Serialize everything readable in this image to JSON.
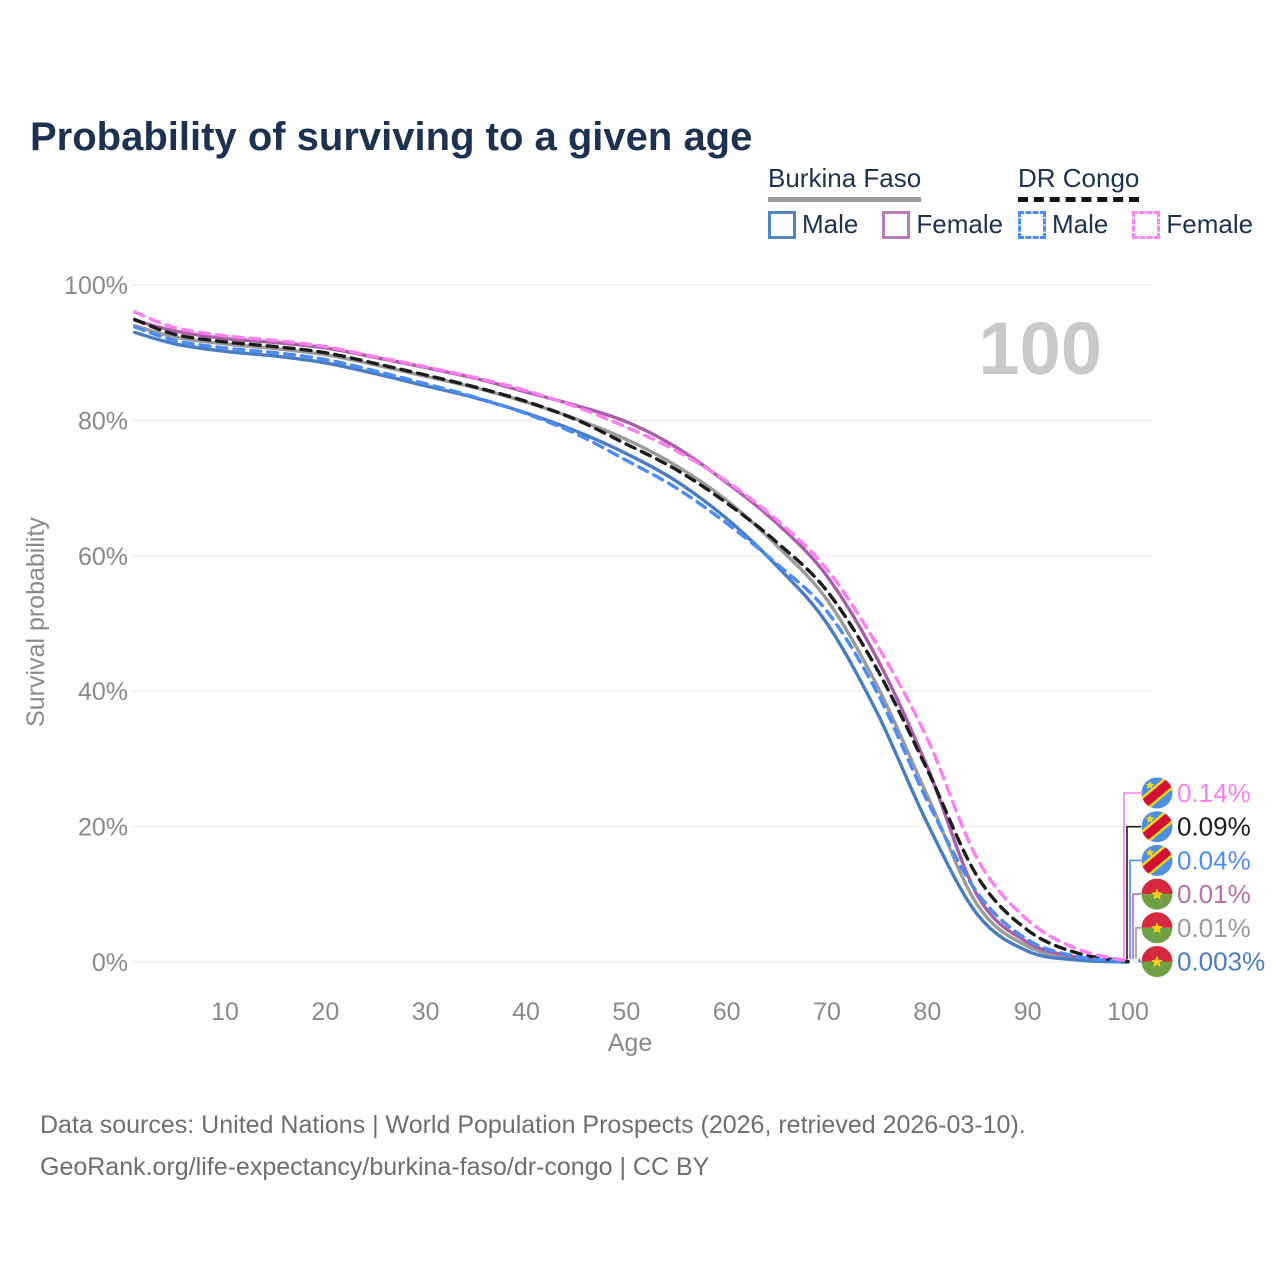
{
  "header": {
    "title": "Probability of surviving to a given age"
  },
  "legend": {
    "groups": [
      {
        "name": "Burkina Faso",
        "line_style": "solid",
        "underline_color": "#999999",
        "items": [
          {
            "label": "Male",
            "color": "#5585c5",
            "box_style": "solid"
          },
          {
            "label": "Female",
            "color": "#bd7cb8",
            "box_style": "solid"
          }
        ]
      },
      {
        "name": "DR Congo",
        "line_style": "dashed",
        "underline_color": "#141414",
        "items": [
          {
            "label": "Male",
            "color": "#4c8cf5",
            "box_style": "dashed"
          },
          {
            "label": "Female",
            "color": "#fd86f3",
            "box_style": "dashed"
          }
        ]
      }
    ]
  },
  "chart_data": {
    "type": "line",
    "title": "Probability of surviving to a given age",
    "xlabel": "Age",
    "ylabel": "Survival probability",
    "xlim": [
      1,
      100
    ],
    "ylim": [
      0,
      100
    ],
    "grid": "horizontal",
    "x_ticks": [
      10,
      20,
      30,
      40,
      50,
      60,
      70,
      80,
      90,
      100
    ],
    "y_ticks": [
      0,
      20,
      40,
      60,
      80,
      100
    ],
    "y_tick_suffix": "%",
    "age_marker": "100",
    "age_marker_color": "#c9c9c9",
    "x": [
      1,
      5,
      10,
      15,
      20,
      25,
      30,
      35,
      40,
      45,
      50,
      55,
      60,
      65,
      70,
      75,
      80,
      85,
      90,
      95,
      100
    ],
    "series": [
      {
        "name": "Burkina Faso Both sexes",
        "country": "burkina-faso",
        "sex": "both",
        "color": "#9b9b9b",
        "dash": false,
        "values": [
          94.0,
          92.3,
          91.3,
          90.6,
          89.7,
          88.2,
          86.5,
          84.8,
          82.7,
          80.2,
          77.2,
          73.3,
          68.2,
          61.5,
          53.5,
          40.8,
          24.6,
          8.4,
          2.3,
          0.5,
          0.01
        ]
      },
      {
        "name": "Burkina Faso Female",
        "country": "burkina-faso",
        "sex": "female",
        "color": "#a95fa8",
        "dash": false,
        "values": [
          94.8,
          93.2,
          92.1,
          91.5,
          90.7,
          89.3,
          87.8,
          86.2,
          84.2,
          82.2,
          79.8,
          76.0,
          70.8,
          64.8,
          57.0,
          44.8,
          28.8,
          9.8,
          2.9,
          0.7,
          0.01
        ]
      },
      {
        "name": "Burkina Faso Male",
        "country": "burkina-faso",
        "sex": "male",
        "color": "#4a7cc3",
        "dash": false,
        "values": [
          93.0,
          91.3,
          90.2,
          89.5,
          88.5,
          86.9,
          85.1,
          83.3,
          81.1,
          78.4,
          75.1,
          71.0,
          65.5,
          58.5,
          50.0,
          36.8,
          20.5,
          7.0,
          1.6,
          0.3,
          0.003
        ]
      },
      {
        "name": "DR Congo Both sexes",
        "country": "dr-congo",
        "sex": "both",
        "color": "#1c1c1c",
        "dash": true,
        "values": [
          94.9,
          92.7,
          91.6,
          90.9,
          90.0,
          88.4,
          86.7,
          84.9,
          82.8,
          80.1,
          76.5,
          72.7,
          67.8,
          62.0,
          54.8,
          43.2,
          28.4,
          12.6,
          4.7,
          1.3,
          0.09
        ]
      },
      {
        "name": "DR Congo Male",
        "country": "dr-congo",
        "sex": "male",
        "color": "#4c8cf5",
        "dash": true,
        "values": [
          93.8,
          91.8,
          90.7,
          90.0,
          89.0,
          87.3,
          85.4,
          83.4,
          81.0,
          78.0,
          74.1,
          70.0,
          64.8,
          58.8,
          51.8,
          39.8,
          23.8,
          10.2,
          3.3,
          0.8,
          0.04
        ]
      },
      {
        "name": "DR Congo Female",
        "country": "dr-congo",
        "sex": "female",
        "color": "#fc7ef0",
        "dash": true,
        "values": [
          96.0,
          93.7,
          92.5,
          91.8,
          90.9,
          89.4,
          87.9,
          86.3,
          84.4,
          82.0,
          79.0,
          75.5,
          71.0,
          65.3,
          58.0,
          46.8,
          33.0,
          15.2,
          6.2,
          1.9,
          0.14
        ]
      }
    ],
    "end_labels": [
      {
        "text": "0.14%",
        "color": "#fb7ef0",
        "country": "dr-congo"
      },
      {
        "text": "0.09%",
        "color": "#1c1c1c",
        "country": "dr-congo"
      },
      {
        "text": "0.04%",
        "color": "#4c8cf5",
        "country": "dr-congo"
      },
      {
        "text": "0.01%",
        "color": "#b573a9",
        "country": "burkina-faso"
      },
      {
        "text": "0.01%",
        "color": "#9b9b9b",
        "country": "burkina-faso"
      },
      {
        "text": "0.003%",
        "color": "#4a7cc3",
        "country": "burkina-faso"
      }
    ]
  },
  "footer": {
    "line1": "Data sources: United Nations | World Population Prospects (2026, retrieved 2026-03-10).",
    "line2": "GeoRank.org/life-expectancy/burkina-faso/dr-congo | CC BY"
  }
}
